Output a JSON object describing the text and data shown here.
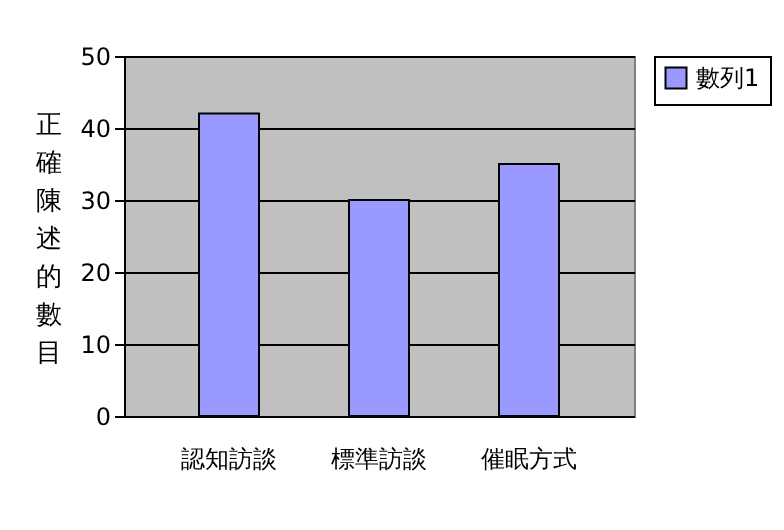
{
  "chart_data": {
    "type": "bar",
    "categories": [
      "認知訪談",
      "標準訪談",
      "催眠方式"
    ],
    "series": [
      {
        "name": "數列1",
        "color": "#9999ff",
        "values": [
          42,
          30,
          35
        ]
      }
    ],
    "ylabel": "正確陳述的數目",
    "ylim": [
      0,
      50
    ],
    "yticks": [
      0,
      10,
      20,
      30,
      40,
      50
    ],
    "grid": "y",
    "legend": "right"
  }
}
